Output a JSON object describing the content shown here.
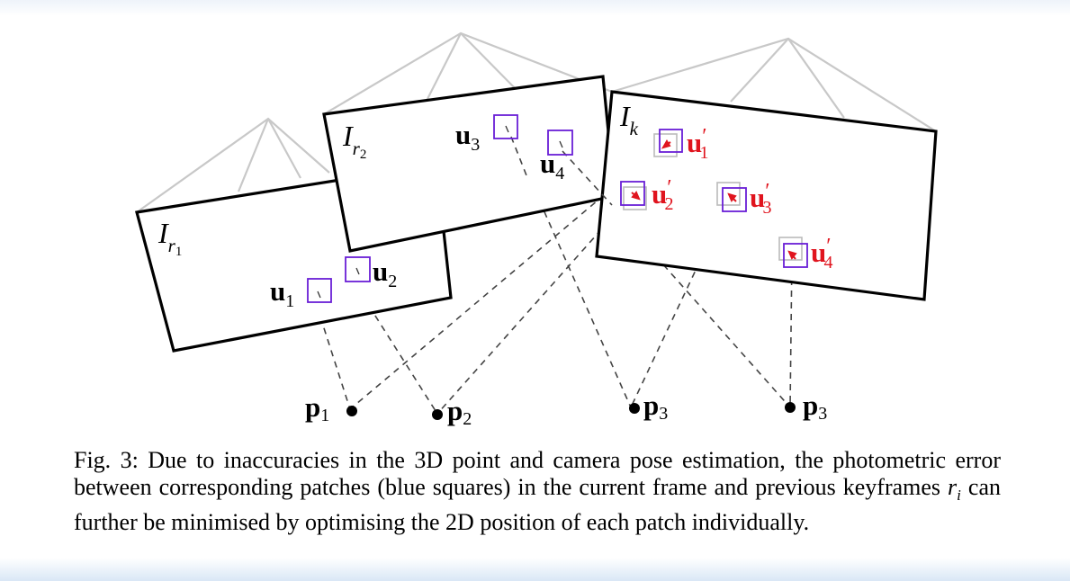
{
  "figure": {
    "frames": {
      "r1": {
        "label_main": "I",
        "label_sub": "r",
        "label_subsub": "1"
      },
      "r2": {
        "label_main": "I",
        "label_sub": "r",
        "label_subsub": "2"
      },
      "k": {
        "label_main": "I",
        "label_sub": "k"
      }
    },
    "patches": {
      "u1": {
        "main": "u",
        "sub": "1"
      },
      "u2": {
        "main": "u",
        "sub": "2"
      },
      "u3": {
        "main": "u",
        "sub": "3"
      },
      "u4": {
        "main": "u",
        "sub": "4"
      },
      "u1p": {
        "main": "u",
        "prime": "′",
        "sub": "1"
      },
      "u2p": {
        "main": "u",
        "prime": "′",
        "sub": "2"
      },
      "u3p": {
        "main": "u",
        "prime": "′",
        "sub": "3"
      },
      "u4p": {
        "main": "u",
        "prime": "′",
        "sub": "4"
      }
    },
    "points": [
      {
        "main": "p",
        "sub": "1"
      },
      {
        "main": "p",
        "sub": "2"
      },
      {
        "main": "p",
        "sub": "3"
      },
      {
        "main": "p",
        "sub": "3"
      }
    ],
    "colors": {
      "frame": "#000000",
      "pyramid": "#c8c8c8",
      "patch": "#6a1fd6",
      "refined_label": "#e0141e",
      "old_patch": "#bbbbbb"
    }
  },
  "caption": {
    "part1": "Fig. 3: Due to inaccuracies in the 3D point and camera pose estimation, the photometric error between corresponding patches (blue squares) in the current frame and previous keyframes",
    "ri": "r",
    "ri_sub": "i",
    "part2": "can further be minimised by optimising the 2D position of each patch individually."
  }
}
